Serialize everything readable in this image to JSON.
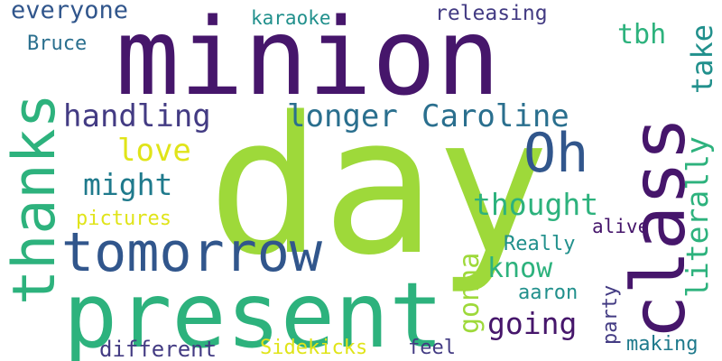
{
  "word_cloud": {
    "words": [
      {
        "text": "minion",
        "color": "#46166b"
      },
      {
        "text": "day",
        "color": "#9ed93a"
      },
      {
        "text": "present",
        "color": "#2db27d"
      },
      {
        "text": "tomorrow",
        "color": "#31568c"
      },
      {
        "text": "thanks",
        "color": "#2db27d"
      },
      {
        "text": "class",
        "color": "#46166b"
      },
      {
        "text": "Oh",
        "color": "#31568c"
      },
      {
        "text": "handling",
        "color": "#433b83"
      },
      {
        "text": "longer",
        "color": "#2a6f8e"
      },
      {
        "text": "Caroline",
        "color": "#2a6f8e"
      },
      {
        "text": "everyone",
        "color": "#31568c"
      },
      {
        "text": "Bruce",
        "color": "#2a6f8e"
      },
      {
        "text": "karaoke",
        "color": "#21908c"
      },
      {
        "text": "releasing",
        "color": "#433b83"
      },
      {
        "text": "tbh",
        "color": "#2db27d"
      },
      {
        "text": "take",
        "color": "#21908c"
      },
      {
        "text": "literally",
        "color": "#2db27d"
      },
      {
        "text": "love",
        "color": "#e0e419"
      },
      {
        "text": "might",
        "color": "#1f7a8c"
      },
      {
        "text": "pictures",
        "color": "#e0e419"
      },
      {
        "text": "thought",
        "color": "#2db27d"
      },
      {
        "text": "alive",
        "color": "#46166b"
      },
      {
        "text": "Really",
        "color": "#21908c"
      },
      {
        "text": "know",
        "color": "#2db27d"
      },
      {
        "text": "gonna",
        "color": "#9ed93a"
      },
      {
        "text": "going",
        "color": "#46166b"
      },
      {
        "text": "aaron",
        "color": "#21908c"
      },
      {
        "text": "party",
        "color": "#433b83"
      },
      {
        "text": "making",
        "color": "#1f7a8c"
      },
      {
        "text": "different",
        "color": "#433b83"
      },
      {
        "text": "Sidekicks",
        "color": "#e0e419"
      },
      {
        "text": "feel",
        "color": "#433b83"
      }
    ]
  }
}
